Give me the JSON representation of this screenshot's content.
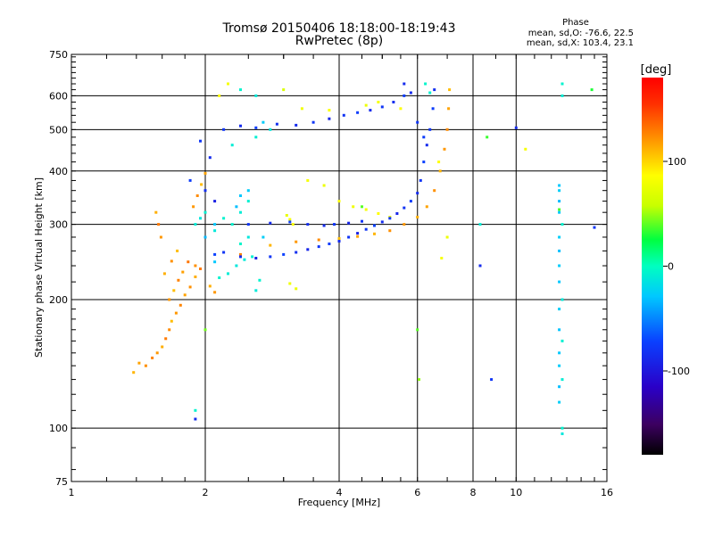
{
  "chart_data": {
    "type": "scatter",
    "title": "Tromsø 20150406 18:18:00-18:19:43",
    "subtitle": "RwPretec (8p)",
    "xlabel": "Frequency [MHz]",
    "ylabel": "Stationary phase Virtual Height [km]",
    "x_scale": "log",
    "y_scale": "log",
    "xlim": [
      1,
      16
    ],
    "ylim": [
      75,
      750
    ],
    "x_ticks": [
      1,
      2,
      4,
      6,
      8,
      10,
      16
    ],
    "y_ticks": [
      75,
      100,
      200,
      300,
      400,
      500,
      600,
      750
    ],
    "grid": true,
    "colorbar": {
      "label": "[deg]",
      "range": [
        -180,
        180
      ],
      "ticks": [
        100,
        0,
        -100
      ]
    },
    "phase_stats": {
      "heading": "Phase",
      "o_mode": "mean, sd,O: -76.6, 22.5",
      "x_mode": "mean, sd,X: 103.4, 23.1"
    },
    "series": [
      {
        "points": [
          [
            1.38,
            135,
            110
          ],
          [
            1.42,
            142,
            115
          ],
          [
            1.47,
            140,
            120
          ],
          [
            1.52,
            146,
            125
          ],
          [
            1.56,
            150,
            118
          ],
          [
            1.6,
            155,
            112
          ],
          [
            1.63,
            162,
            128
          ],
          [
            1.66,
            170,
            122
          ],
          [
            1.68,
            178,
            108
          ],
          [
            1.72,
            186,
            118
          ],
          [
            1.76,
            194,
            124
          ],
          [
            1.8,
            205,
            115
          ],
          [
            1.85,
            214,
            120
          ],
          [
            1.9,
            226,
            112
          ],
          [
            1.95,
            236,
            128
          ],
          [
            1.66,
            200,
            118
          ],
          [
            1.7,
            210,
            108
          ],
          [
            1.74,
            222,
            125
          ],
          [
            1.78,
            232,
            116
          ],
          [
            1.83,
            245,
            130
          ],
          [
            1.62,
            230,
            112
          ],
          [
            1.68,
            246,
            120
          ],
          [
            1.73,
            260,
            108
          ],
          [
            1.59,
            280,
            118
          ],
          [
            1.57,
            300,
            128
          ],
          [
            1.55,
            320,
            112
          ],
          [
            1.88,
            330,
            118
          ],
          [
            1.92,
            350,
            122
          ],
          [
            1.96,
            372,
            108
          ],
          [
            2.0,
            395,
            115
          ],
          [
            2.4,
            255,
            125
          ],
          [
            2.8,
            268,
            110
          ],
          [
            3.2,
            273,
            118
          ],
          [
            3.6,
            276,
            122
          ],
          [
            4.0,
            278,
            108
          ],
          [
            4.4,
            281,
            115
          ],
          [
            4.8,
            285,
            110
          ],
          [
            5.2,
            290,
            120
          ],
          [
            5.6,
            300,
            118
          ],
          [
            6.0,
            312,
            112
          ],
          [
            6.3,
            330,
            115
          ],
          [
            6.55,
            360,
            120
          ],
          [
            6.75,
            400,
            110
          ],
          [
            6.9,
            450,
            118
          ],
          [
            7.0,
            500,
            122
          ],
          [
            7.05,
            560,
            115
          ],
          [
            7.08,
            620,
            108
          ],
          [
            1.9,
            240,
            120
          ],
          [
            2.05,
            215,
            112
          ],
          [
            2.1,
            208,
            118
          ]
        ]
      },
      {
        "points": [
          [
            6.8,
            250,
            85
          ],
          [
            7.0,
            280,
            80
          ],
          [
            6.7,
            420,
            90
          ],
          [
            3.4,
            380,
            85
          ],
          [
            3.7,
            370,
            80
          ],
          [
            4.0,
            340,
            88
          ],
          [
            4.3,
            330,
            82
          ],
          [
            4.6,
            325,
            85
          ],
          [
            4.9,
            318,
            90
          ],
          [
            5.2,
            312,
            80
          ],
          [
            3.05,
            315,
            78
          ],
          [
            3.1,
            308,
            84
          ],
          [
            3.15,
            300,
            86
          ],
          [
            3.2,
            212,
            80
          ],
          [
            3.1,
            218,
            82
          ],
          [
            2.15,
            600,
            90
          ],
          [
            2.25,
            640,
            85
          ],
          [
            3.0,
            620,
            70
          ],
          [
            3.3,
            560,
            82
          ],
          [
            3.8,
            555,
            88
          ],
          [
            4.6,
            570,
            80
          ],
          [
            4.9,
            580,
            85
          ],
          [
            5.5,
            560,
            90
          ],
          [
            10.5,
            450,
            85
          ]
        ]
      },
      {
        "points": [
          [
            6.0,
            170,
            40
          ],
          [
            6.05,
            130,
            50
          ],
          [
            8.6,
            480,
            35
          ],
          [
            2.0,
            170,
            45
          ],
          [
            4.5,
            330,
            40
          ],
          [
            14.8,
            620,
            30
          ],
          [
            12.5,
            325,
            38
          ]
        ]
      },
      {
        "points": [
          [
            2.15,
            225,
            -10
          ],
          [
            2.25,
            230,
            -15
          ],
          [
            2.35,
            240,
            -20
          ],
          [
            2.45,
            248,
            -18
          ],
          [
            2.55,
            252,
            -12
          ],
          [
            2.4,
            270,
            -8
          ],
          [
            2.5,
            280,
            -20
          ],
          [
            2.3,
            300,
            -10
          ],
          [
            2.4,
            320,
            -15
          ],
          [
            2.5,
            340,
            -12
          ],
          [
            2.1,
            290,
            -18
          ],
          [
            2.2,
            310,
            -10
          ],
          [
            1.9,
            300,
            -15
          ],
          [
            1.95,
            310,
            -20
          ],
          [
            2.0,
            320,
            -12
          ],
          [
            2.6,
            210,
            -18
          ],
          [
            2.65,
            222,
            -10
          ],
          [
            2.3,
            460,
            -15
          ],
          [
            2.6,
            480,
            -12
          ],
          [
            2.8,
            500,
            -20
          ],
          [
            2.4,
            620,
            -10
          ],
          [
            2.6,
            600,
            -18
          ],
          [
            6.25,
            640,
            -8
          ],
          [
            6.4,
            610,
            -12
          ],
          [
            12.7,
            640,
            -10
          ],
          [
            12.7,
            600,
            -15
          ],
          [
            12.7,
            300,
            -10
          ],
          [
            12.7,
            200,
            -18
          ],
          [
            12.7,
            160,
            -12
          ],
          [
            12.7,
            130,
            -15
          ],
          [
            12.7,
            100,
            -10
          ],
          [
            12.7,
            97,
            -20
          ],
          [
            1.9,
            110,
            -10
          ],
          [
            8.3,
            300,
            -15
          ]
        ]
      },
      {
        "points": [
          [
            2.1,
            255,
            -90
          ],
          [
            2.2,
            258,
            -95
          ],
          [
            2.4,
            252,
            -100
          ],
          [
            2.6,
            250,
            -105
          ],
          [
            2.8,
            252,
            -95
          ],
          [
            3.0,
            255,
            -90
          ],
          [
            3.2,
            258,
            -98
          ],
          [
            3.4,
            262,
            -102
          ],
          [
            3.6,
            266,
            -95
          ],
          [
            3.8,
            270,
            -92
          ],
          [
            4.0,
            274,
            -100
          ],
          [
            4.2,
            280,
            -96
          ],
          [
            4.4,
            286,
            -104
          ],
          [
            4.6,
            292,
            -95
          ],
          [
            4.8,
            298,
            -90
          ],
          [
            5.0,
            304,
            -100
          ],
          [
            5.2,
            310,
            -95
          ],
          [
            5.4,
            318,
            -102
          ],
          [
            5.6,
            328,
            -96
          ],
          [
            5.8,
            340,
            -92
          ],
          [
            6.0,
            355,
            -100
          ],
          [
            6.1,
            380,
            -95
          ],
          [
            6.2,
            420,
            -90
          ],
          [
            6.3,
            460,
            -100
          ],
          [
            6.4,
            500,
            -95
          ],
          [
            6.5,
            560,
            -92
          ],
          [
            6.55,
            620,
            -98
          ],
          [
            2.5,
            300,
            -95
          ],
          [
            2.8,
            302,
            -100
          ],
          [
            3.1,
            304,
            -92
          ],
          [
            3.4,
            300,
            -98
          ],
          [
            3.7,
            298,
            -100
          ],
          [
            3.9,
            300,
            -95
          ],
          [
            4.2,
            302,
            -102
          ],
          [
            4.5,
            305,
            -96
          ],
          [
            2.2,
            500,
            -95
          ],
          [
            2.4,
            510,
            -100
          ],
          [
            2.6,
            505,
            -92
          ],
          [
            2.9,
            515,
            -98
          ],
          [
            3.2,
            512,
            -100
          ],
          [
            3.5,
            520,
            -95
          ],
          [
            3.8,
            530,
            -102
          ],
          [
            4.1,
            540,
            -96
          ],
          [
            4.4,
            548,
            -92
          ],
          [
            4.7,
            555,
            -100
          ],
          [
            5.0,
            565,
            -95
          ],
          [
            5.3,
            580,
            -98
          ],
          [
            5.6,
            600,
            -92
          ],
          [
            5.8,
            610,
            -100
          ],
          [
            1.95,
            470,
            -95
          ],
          [
            2.05,
            430,
            -100
          ],
          [
            1.85,
            380,
            -92
          ],
          [
            2.0,
            360,
            -98
          ],
          [
            2.1,
            340,
            -105
          ],
          [
            5.6,
            640,
            -100
          ],
          [
            6.0,
            520,
            -95
          ],
          [
            6.2,
            480,
            -92
          ],
          [
            8.3,
            240,
            -100
          ],
          [
            8.8,
            130,
            -95
          ],
          [
            1.9,
            105,
            -100
          ],
          [
            15.0,
            295,
            -95
          ],
          [
            10.0,
            505,
            -100
          ]
        ]
      },
      {
        "points": [
          [
            12.5,
            370,
            -45
          ],
          [
            12.5,
            360,
            -40
          ],
          [
            12.5,
            340,
            -50
          ],
          [
            12.5,
            320,
            -45
          ],
          [
            12.5,
            280,
            -40
          ],
          [
            12.5,
            260,
            -48
          ],
          [
            12.5,
            240,
            -42
          ],
          [
            12.5,
            220,
            -45
          ],
          [
            12.5,
            190,
            -40
          ],
          [
            12.5,
            170,
            -46
          ],
          [
            12.5,
            150,
            -44
          ],
          [
            12.5,
            140,
            -42
          ],
          [
            12.5,
            125,
            -48
          ],
          [
            12.5,
            115,
            -40
          ],
          [
            2.4,
            350,
            -45
          ],
          [
            2.5,
            360,
            -40
          ],
          [
            2.35,
            330,
            -48
          ],
          [
            2.7,
            520,
            -42
          ],
          [
            2.1,
            245,
            -45
          ],
          [
            2.7,
            280,
            -40
          ],
          [
            2.0,
            280,
            -50
          ],
          [
            2.1,
            300,
            -44
          ]
        ]
      }
    ]
  }
}
